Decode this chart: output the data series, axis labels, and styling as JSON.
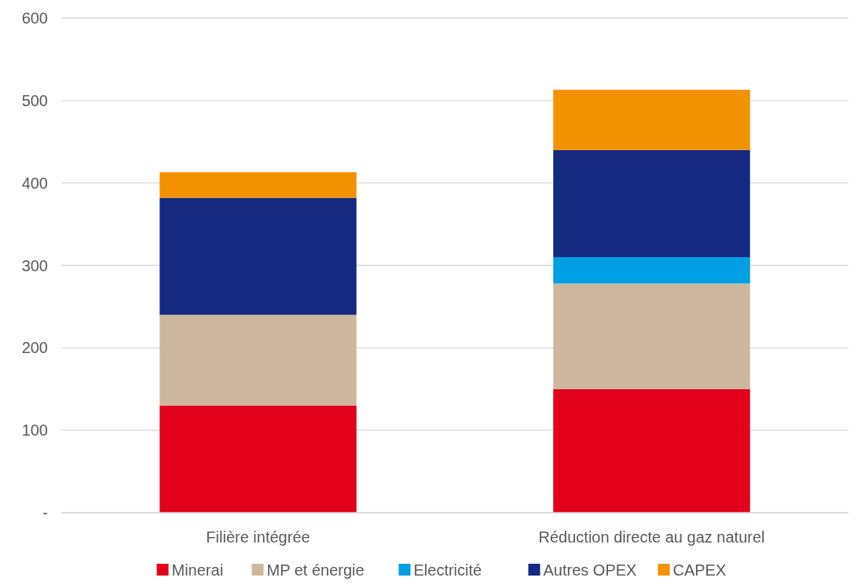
{
  "chart_data": {
    "type": "bar",
    "stacked": true,
    "categories": [
      "Filière intégrée",
      "Réduction directe au gaz naturel"
    ],
    "series": [
      {
        "name": "Minerai",
        "color": "#e2001a",
        "values": [
          130,
          150
        ]
      },
      {
        "name": "MP et énergie",
        "color": "#cdb89f",
        "values": [
          110,
          128
        ]
      },
      {
        "name": "Electricité",
        "color": "#009fe3",
        "values": [
          0,
          32
        ]
      },
      {
        "name": "Autres OPEX",
        "color": "#14297f",
        "values": [
          142,
          130
        ]
      },
      {
        "name": "CAPEX",
        "color": "#f39200",
        "values": [
          31,
          73
        ]
      }
    ],
    "ylim": [
      0,
      600
    ],
    "yticks": [
      {
        "value": 0,
        "label": "-"
      },
      100,
      200,
      300,
      400,
      500,
      600
    ],
    "grid": "y",
    "legend": "bottom"
  }
}
